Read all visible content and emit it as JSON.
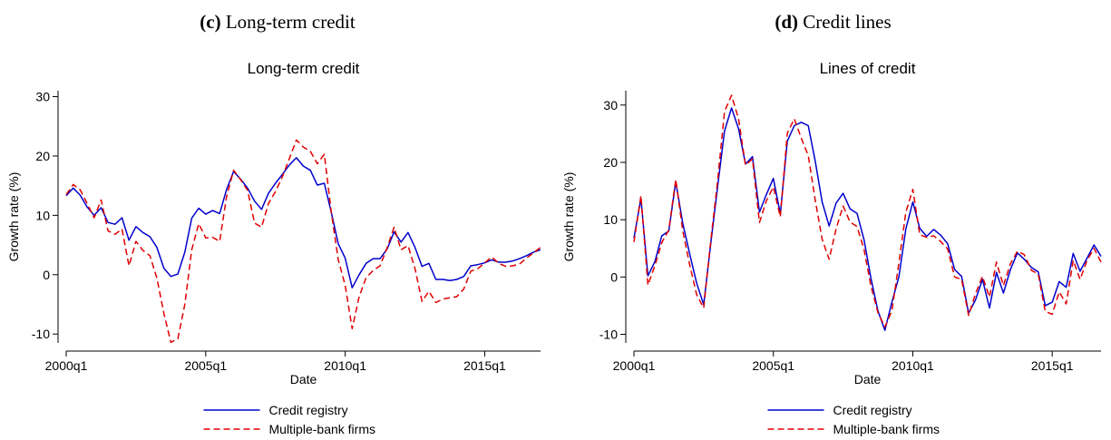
{
  "panels": [
    {
      "label": "(c)",
      "caption": "Long-term credit",
      "title": "Long-term credit"
    },
    {
      "label": "(d)",
      "caption": "Credit lines",
      "title": "Lines of credit"
    }
  ],
  "chart_data": [
    {
      "type": "line",
      "title": "Long-term credit",
      "xlabel": "Date",
      "ylabel": "Growth rate (%)",
      "x_start": "2000q1",
      "xticks": [
        "2000q1",
        "2005q1",
        "2010q1",
        "2015q1"
      ],
      "yticks": [
        -10,
        0,
        10,
        20,
        30
      ],
      "ylim": [
        -11.5,
        31
      ],
      "legend_position": "bottom",
      "grid": false,
      "series": [
        {
          "name": "Credit registry",
          "color": "#0000cc",
          "dash": "solid",
          "values": [
            13.3,
            14.6,
            13.4,
            11.4,
            10,
            11.3,
            8.8,
            8.5,
            9.6,
            5.8,
            8.1,
            7.1,
            6.4,
            4.6,
            1.1,
            -0.3,
            0.1,
            3.8,
            9.5,
            11.2,
            10.2,
            10.8,
            10.3,
            14.4,
            17.4,
            16.1,
            14.6,
            12.4,
            11,
            13.7,
            15.4,
            16.9,
            18.5,
            19.7,
            18.3,
            17.6,
            15.1,
            15.4,
            10.5,
            5.2,
            2.8,
            -2.2,
            0,
            1.9,
            2.7,
            2.7,
            4.3,
            7.2,
            5.5,
            7.1,
            4.6,
            1.4,
            1.9,
            -0.8,
            -0.8,
            -1,
            -0.8,
            -0.3,
            1.5,
            1.7,
            2,
            2.5,
            2.1,
            2.1,
            2.3,
            2.7,
            3.2,
            3.8,
            4.2
          ]
        },
        {
          "name": "Multiple-bank firms",
          "color": "#e00000",
          "dash": "dashed",
          "values": [
            13.5,
            15.2,
            14.3,
            12,
            9.6,
            12.6,
            7.4,
            6.8,
            7.7,
            1.5,
            5.6,
            4.1,
            3.2,
            -0.6,
            -6.5,
            -11.4,
            -10.8,
            -5,
            4.2,
            8.6,
            6.2,
            6.3,
            5.6,
            13.2,
            17.6,
            16,
            14.2,
            8.7,
            8,
            12,
            14,
            16.5,
            19.6,
            22.7,
            21.5,
            20.8,
            18.7,
            20.3,
            10.5,
            2.5,
            -1.8,
            -9.1,
            -3.7,
            -0.5,
            0.7,
            1.5,
            4.5,
            8,
            4.2,
            4.9,
            1,
            -4.5,
            -2.8,
            -4.7,
            -4.1,
            -3.9,
            -3.7,
            -2.4,
            0.6,
            1,
            2,
            3,
            1.9,
            1.4,
            1.5,
            1.8,
            2.8,
            3.7,
            4.6
          ]
        }
      ]
    },
    {
      "type": "line",
      "title": "Lines of credit",
      "xlabel": "Date",
      "ylabel": "Growth rate (%)",
      "x_start": "2000q1",
      "xticks": [
        "2000q1",
        "2005q1",
        "2010q1",
        "2015q1"
      ],
      "yticks": [
        -10,
        0,
        10,
        20,
        30
      ],
      "ylim": [
        -11.5,
        32.5
      ],
      "legend_position": "bottom",
      "grid": false,
      "series": [
        {
          "name": "Credit registry",
          "color": "#0000cc",
          "dash": "solid",
          "values": [
            6.8,
            13.7,
            0.2,
            2.7,
            7.2,
            8,
            16.6,
            9.4,
            4,
            -1.1,
            -4.8,
            5.7,
            15.7,
            25.5,
            29.5,
            25.9,
            19.7,
            21,
            11.3,
            14.4,
            17.2,
            11,
            23.7,
            26.4,
            27,
            26.4,
            20.2,
            13.1,
            8.9,
            12.9,
            14.6,
            11.9,
            11.1,
            6.5,
            -0.2,
            -5.9,
            -9.3,
            -4.4,
            0,
            8.4,
            13.1,
            8.5,
            7.1,
            8.3,
            7.3,
            5.8,
            1.3,
            0.1,
            -6.3,
            -4,
            -0.4,
            -5.4,
            0.8,
            -2.8,
            1.3,
            4.2,
            3.1,
            1.7,
            0.9,
            -5,
            -4.4,
            -0.8,
            -1.8,
            4.1,
            1,
            3.3,
            5.6,
            3.6
          ]
        },
        {
          "name": "Multiple-bank firms",
          "color": "#e00000",
          "dash": "dashed",
          "values": [
            6.1,
            14.2,
            -1.4,
            2,
            6,
            8.2,
            17,
            8.1,
            2.1,
            -3.1,
            -5.4,
            6.2,
            16.7,
            28.9,
            31.7,
            27.6,
            19.5,
            20.6,
            9.5,
            13.3,
            15.7,
            10.5,
            25.1,
            27.6,
            24.2,
            21.2,
            13.4,
            6.6,
            3.1,
            8.4,
            12.4,
            9.6,
            8.8,
            4.8,
            -1.6,
            -6.2,
            -8.7,
            -5.9,
            2.4,
            11.3,
            15.3,
            7.4,
            6.9,
            7.2,
            6.2,
            4.9,
            0,
            -0.4,
            -6.7,
            -2.9,
            0.1,
            -3.5,
            2.6,
            -1.5,
            2.3,
            4.5,
            3.9,
            1.2,
            0.5,
            -6,
            -6.5,
            -2.6,
            -4.7,
            2.9,
            -0.4,
            2.9,
            5,
            2.6
          ]
        }
      ]
    }
  ]
}
